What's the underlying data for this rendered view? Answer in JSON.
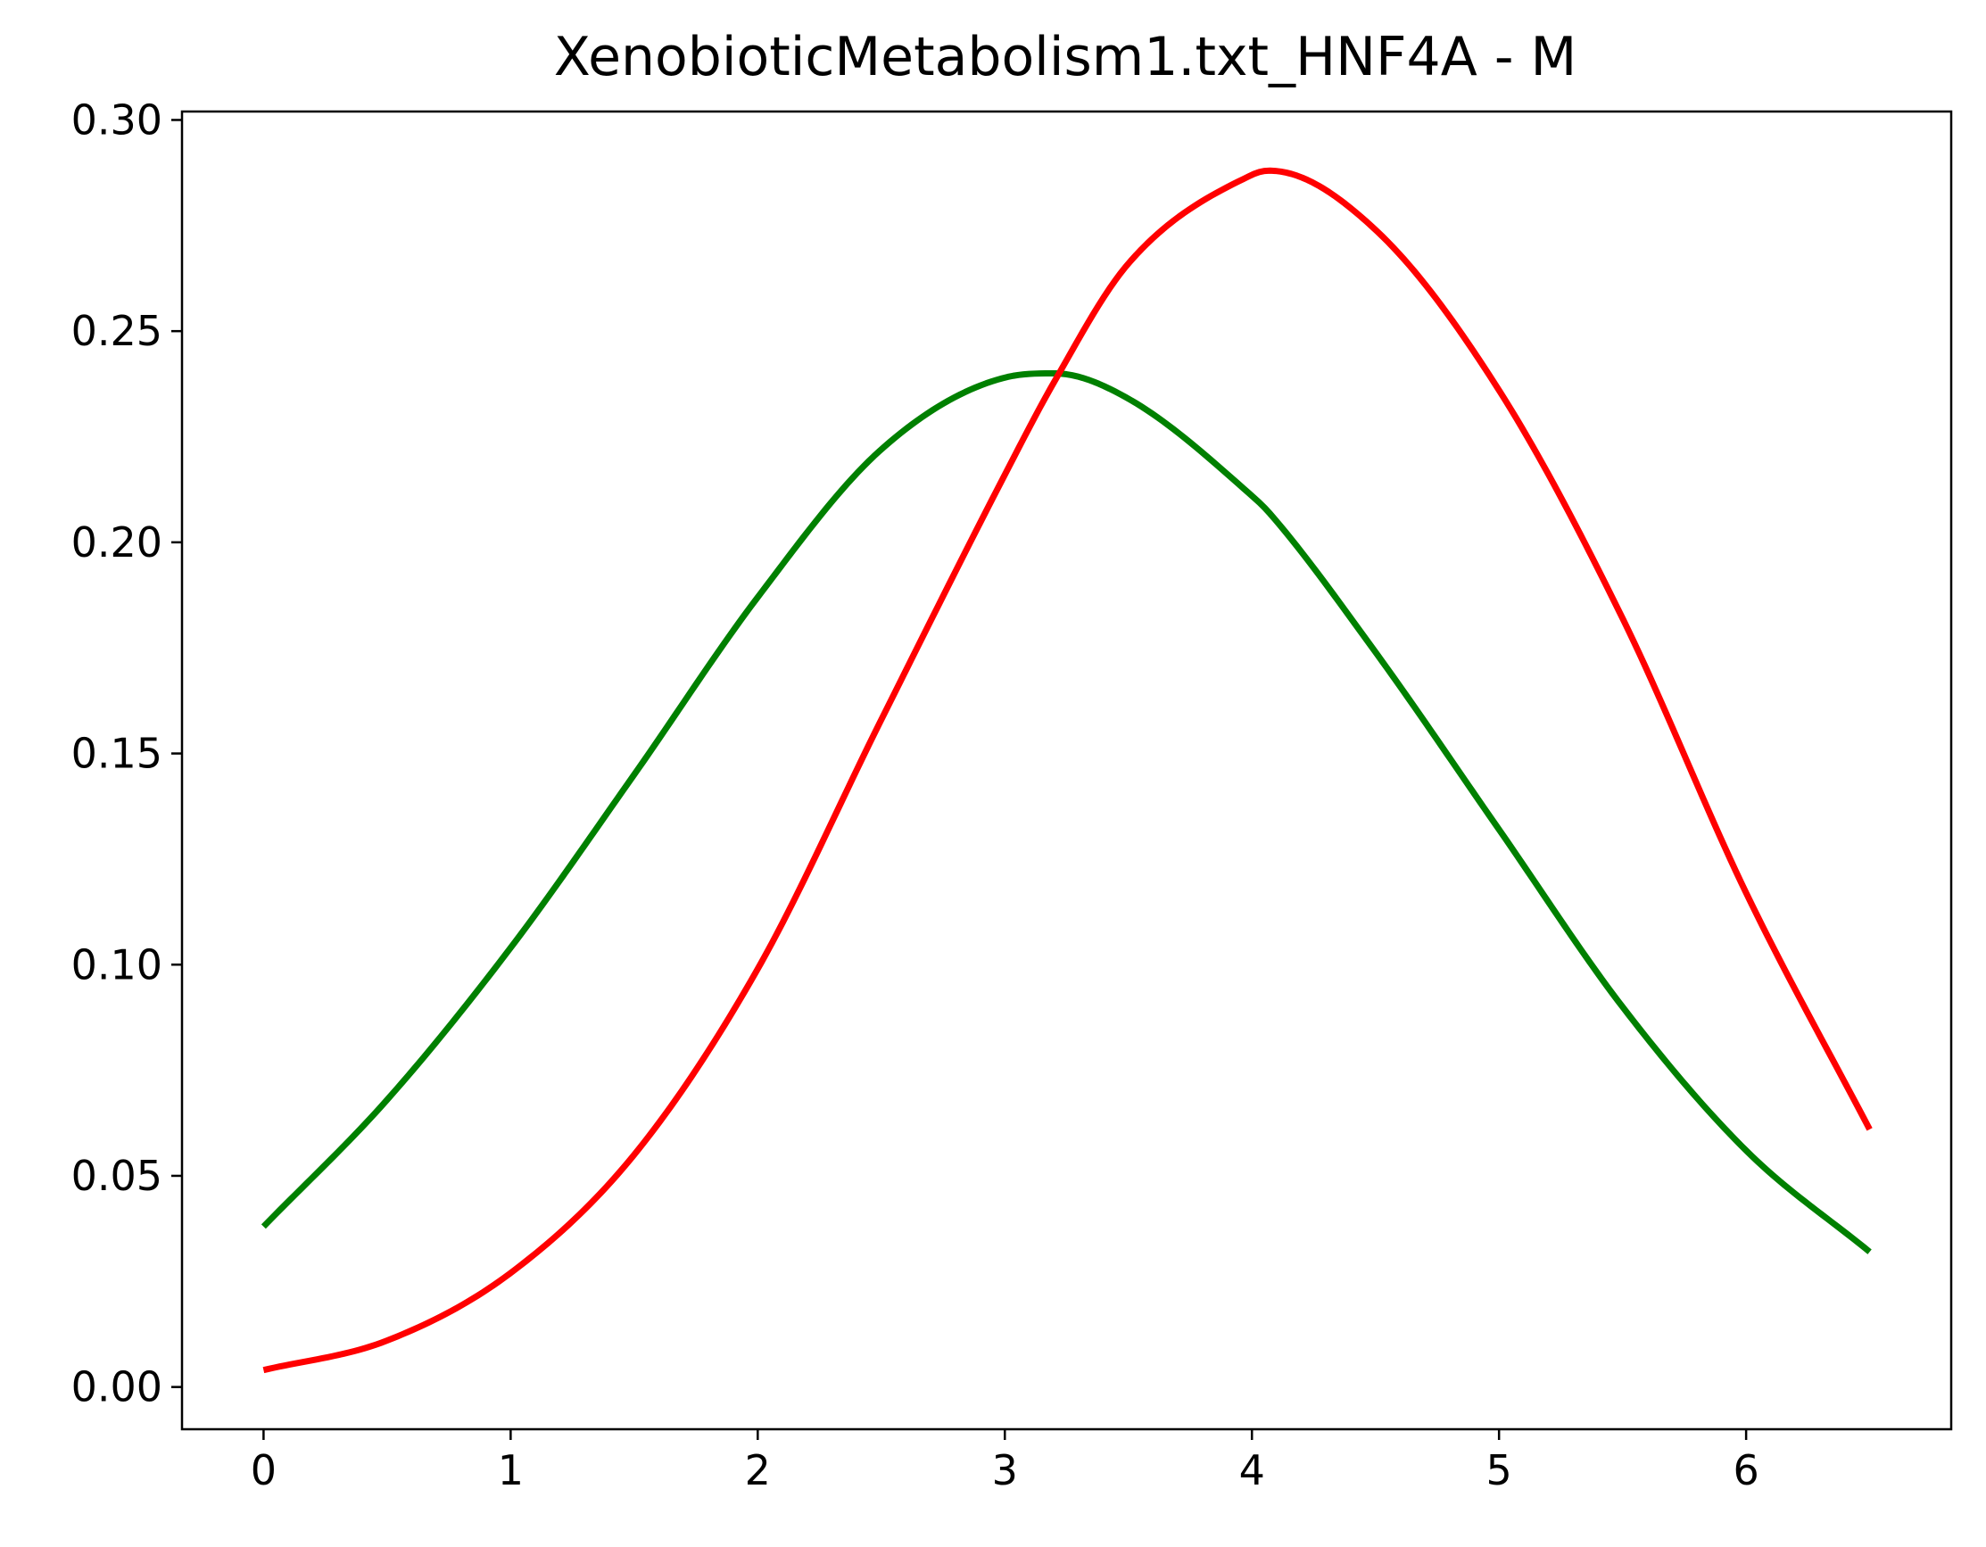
{
  "chart_data": {
    "type": "line",
    "title": "XenobioticMetabolism1.txt_HNF4A - M",
    "xlabel": "",
    "ylabel": "",
    "xlim": [
      -0.33,
      6.83
    ],
    "ylim": [
      -0.01,
      0.302
    ],
    "xticks": [
      0,
      1,
      2,
      3,
      4,
      5,
      6
    ],
    "xtick_labels": [
      "0",
      "1",
      "2",
      "3",
      "4",
      "5",
      "6"
    ],
    "yticks": [
      0.0,
      0.05,
      0.1,
      0.15,
      0.2,
      0.25,
      0.3
    ],
    "ytick_labels": [
      "0.00",
      "0.05",
      "0.10",
      "0.15",
      "0.20",
      "0.25",
      "0.30"
    ],
    "grid": false,
    "legend": "none",
    "x": [
      0,
      0.5,
      1.0,
      1.5,
      2.0,
      2.5,
      3.0,
      3.2,
      3.5,
      4.0,
      4.07,
      4.5,
      5.0,
      5.5,
      6.0,
      6.5
    ],
    "series": [
      {
        "color": "#008000",
        "values": [
          0.038,
          0.068,
          0.104,
          0.145,
          0.187,
          0.222,
          0.239,
          0.24,
          0.234,
          0.211,
          0.207,
          0.174,
          0.132,
          0.09,
          0.056,
          0.032
        ]
      },
      {
        "color": "#ff0000",
        "values": [
          0.004,
          0.011,
          0.027,
          0.055,
          0.099,
          0.158,
          0.216,
          0.238,
          0.266,
          0.287,
          0.288,
          0.274,
          0.236,
          0.182,
          0.117,
          0.061
        ]
      }
    ]
  }
}
